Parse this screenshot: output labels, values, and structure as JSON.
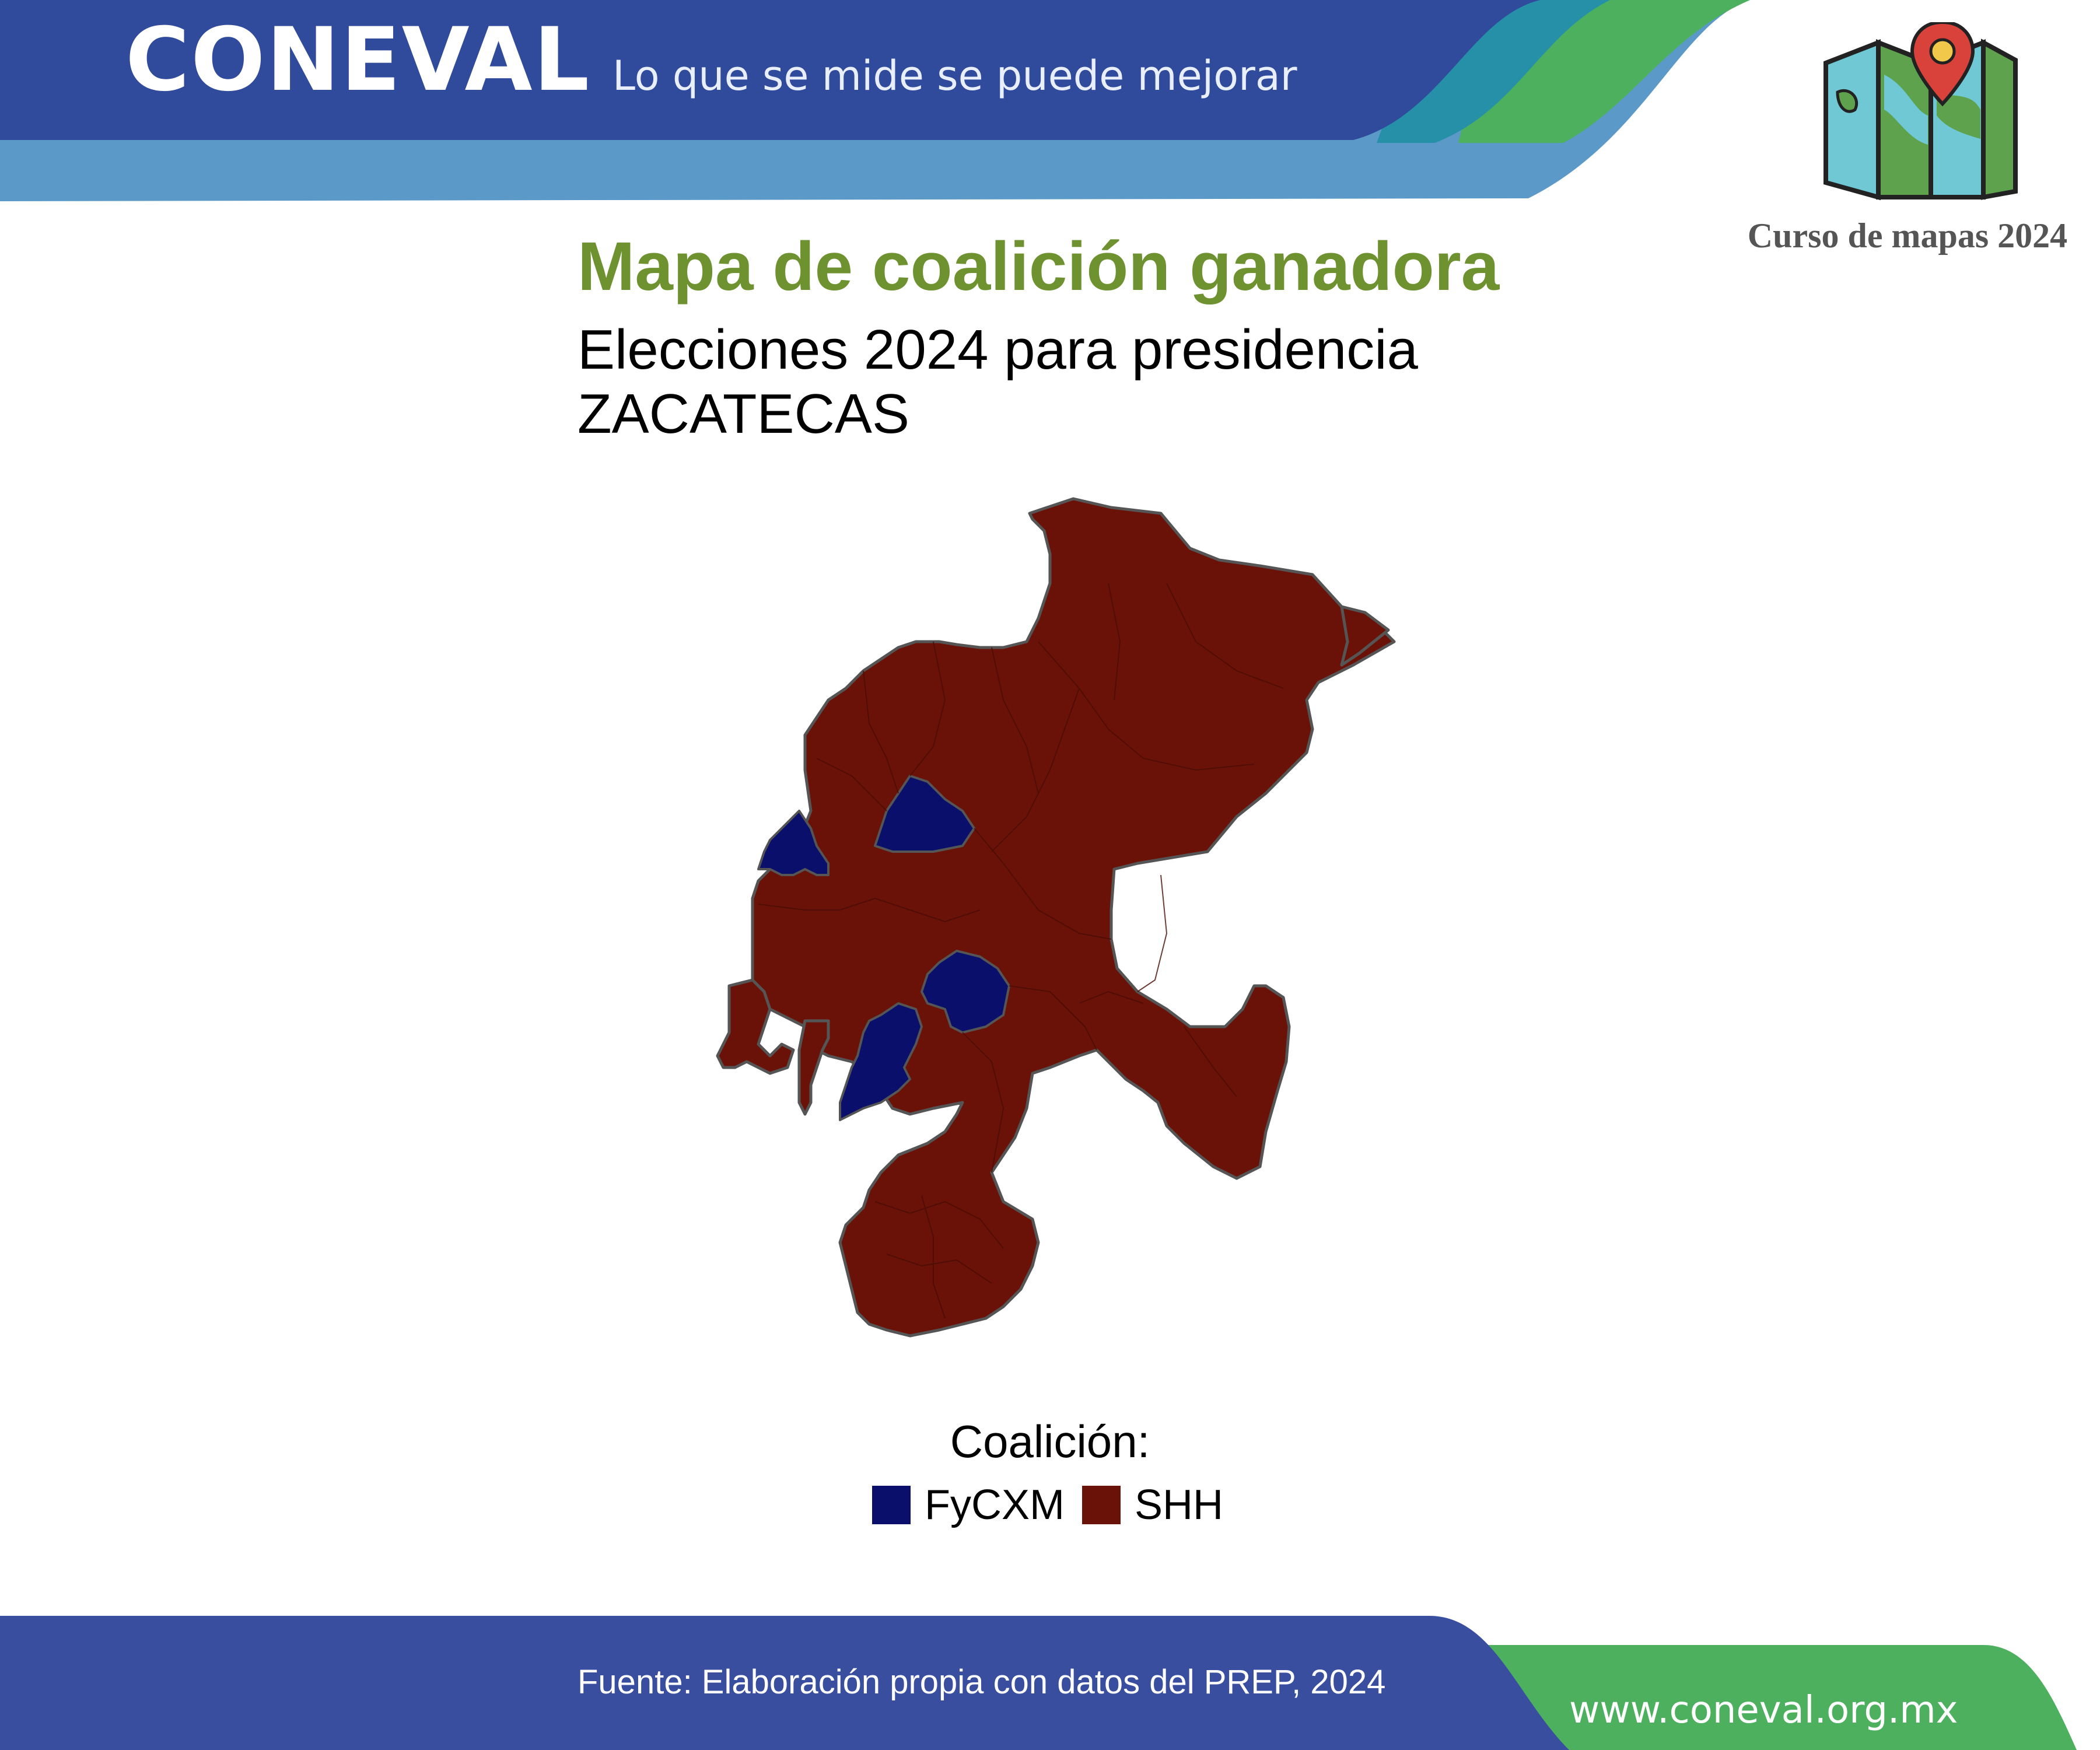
{
  "header": {
    "logo_text": "CONEVAL",
    "slogan": "Lo que se mide se puede mejorar",
    "course_label": "Curso de mapas 2024",
    "course_icon": "folded-map-with-pin-icon"
  },
  "map": {
    "title": "Mapa de coalición ganadora",
    "subtitle_line1": "Elecciones 2024 para presidencia",
    "subtitle_line2": "ZACATECAS",
    "region": "Zacatecas"
  },
  "legend": {
    "title": "Coalición:",
    "items": [
      {
        "label": "FyCXM",
        "color": "#0a0f6b"
      },
      {
        "label": "SHH",
        "color": "#6b1208"
      }
    ]
  },
  "footer": {
    "source": "Fuente: Elaboración propia con datos del PREP, 2024",
    "url": "www.coneval.org.mx"
  },
  "colors": {
    "header_blue": "#304a9c",
    "header_light_blue": "#5b9ac8",
    "teal": "#2590a8",
    "green": "#4cb05f",
    "title_green": "#6e9230",
    "footer_blue": "#3a4ea0",
    "shh": "#6b1208",
    "fycxm": "#0a0f6b"
  }
}
